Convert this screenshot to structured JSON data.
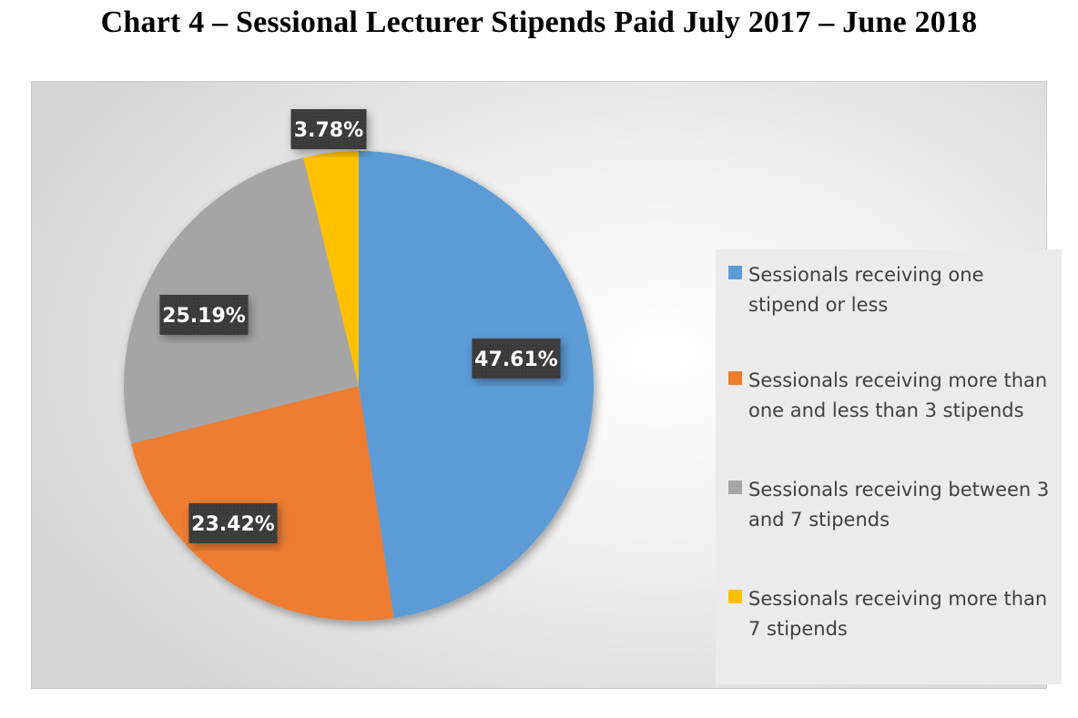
{
  "title": "Chart 4 – Sessional Lecturer Stipends Paid July 2017 – June 2018",
  "chart_data": {
    "type": "pie",
    "title": "Chart 4 – Sessional Lecturer Stipends Paid July 2017 – June 2018",
    "legend_position": "right",
    "slices": [
      {
        "label": "Sessionals receiving one stipend or less",
        "value": 47.61,
        "display": "47.61%",
        "color": "#5b9bd5"
      },
      {
        "label": "Sessionals receiving more than one and less than 3 stipends",
        "value": 23.42,
        "display": "23.42%",
        "color": "#ed7d31"
      },
      {
        "label": "Sessionals receiving between 3 and 7 stipends",
        "value": 25.19,
        "display": "25.19%",
        "color": "#a5a5a5"
      },
      {
        "label": "Sessionals receiving more than 7 stipends",
        "value": 3.78,
        "display": "3.78%",
        "color": "#ffc000"
      }
    ]
  }
}
